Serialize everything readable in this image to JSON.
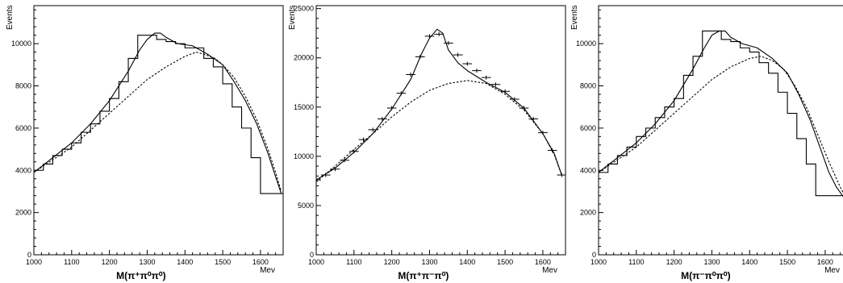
{
  "chart_data": [
    {
      "type": "histogram",
      "xlabel": "M(π⁺π⁰π⁰)",
      "xunit": "Mev",
      "ylabel": "Events",
      "xlim": [
        1000,
        1660
      ],
      "ylim": [
        0,
        11800
      ],
      "xticks": [
        "1000",
        "1100",
        "1200",
        "1300",
        "1400",
        "1500",
        "1600"
      ],
      "yticks": [
        "0",
        "2000",
        "4000",
        "6000",
        "8000",
        "10000"
      ],
      "histogram": {
        "edges": [
          1000,
          1025,
          1050,
          1075,
          1100,
          1125,
          1150,
          1175,
          1200,
          1225,
          1250,
          1275,
          1300,
          1325,
          1350,
          1375,
          1400,
          1425,
          1450,
          1475,
          1500,
          1525,
          1550,
          1575,
          1600,
          1625,
          1650,
          1660
        ],
        "values": [
          4000,
          4300,
          4700,
          5000,
          5300,
          5800,
          6200,
          6800,
          7400,
          8200,
          9300,
          10400,
          10400,
          10200,
          10100,
          10000,
          9800,
          9800,
          9300,
          8900,
          8100,
          7000,
          6000,
          4600,
          2900,
          2900,
          2900
        ]
      },
      "fit": {
        "x": [
          1000,
          1050,
          1100,
          1150,
          1200,
          1250,
          1280,
          1300,
          1320,
          1335,
          1350,
          1380,
          1420,
          1460,
          1500,
          1530,
          1560,
          1590,
          1620,
          1640,
          1655
        ],
        "y": [
          3900,
          4600,
          5300,
          6200,
          7300,
          8700,
          9700,
          10200,
          10500,
          10500,
          10300,
          10000,
          9900,
          9500,
          9000,
          8200,
          7300,
          6200,
          4800,
          3700,
          2900
        ]
      },
      "background": {
        "x": [
          1000,
          1050,
          1100,
          1150,
          1200,
          1250,
          1300,
          1350,
          1400,
          1430,
          1450,
          1480,
          1500,
          1530,
          1560,
          1590,
          1620,
          1640,
          1655
        ],
        "y": [
          3900,
          4500,
          5100,
          5900,
          6700,
          7500,
          8300,
          8900,
          9400,
          9600,
          9500,
          9300,
          9000,
          8400,
          7500,
          6400,
          5000,
          3900,
          3000
        ]
      }
    },
    {
      "type": "error_points",
      "xlabel": "M(π⁺π⁻π⁰)",
      "xunit": "Mev",
      "ylabel": "Events",
      "xlim": [
        1000,
        1660
      ],
      "ylim": [
        0,
        25300
      ],
      "xticks": [
        "1000",
        "1100",
        "1200",
        "1300",
        "1400",
        "1500",
        "1600"
      ],
      "yticks": [
        "0",
        "5000",
        "10000",
        "15000",
        "20000",
        "25000"
      ],
      "points": {
        "x": [
          1000,
          1025,
          1050,
          1075,
          1100,
          1125,
          1150,
          1175,
          1200,
          1225,
          1250,
          1275,
          1300,
          1325,
          1350,
          1375,
          1400,
          1425,
          1450,
          1475,
          1500,
          1525,
          1550,
          1575,
          1600,
          1625,
          1650
        ],
        "y": [
          7600,
          8100,
          8700,
          9600,
          10500,
          11700,
          12700,
          13800,
          14900,
          16400,
          18300,
          20100,
          22200,
          22400,
          21500,
          20300,
          19400,
          18700,
          18000,
          17300,
          16600,
          15800,
          14900,
          13800,
          12400,
          10600,
          8100
        ]
      },
      "fit": {
        "x": [
          1000,
          1050,
          1100,
          1150,
          1200,
          1250,
          1280,
          1300,
          1320,
          1335,
          1350,
          1375,
          1400,
          1450,
          1500,
          1550,
          1600,
          1630,
          1650
        ],
        "y": [
          7600,
          8800,
          10400,
          12300,
          14800,
          17800,
          20500,
          22000,
          22900,
          22500,
          20800,
          19500,
          18700,
          17500,
          16500,
          14900,
          12300,
          10300,
          8100
        ]
      },
      "background": {
        "x": [
          1000,
          1050,
          1100,
          1150,
          1200,
          1250,
          1300,
          1350,
          1400,
          1450,
          1500,
          1550,
          1600,
          1630,
          1650
        ],
        "y": [
          7400,
          9000,
          10700,
          12300,
          14000,
          15500,
          16700,
          17400,
          17700,
          17400,
          16300,
          14700,
          12300,
          10200,
          8100
        ]
      }
    },
    {
      "type": "histogram",
      "xlabel": "M(π⁻π⁰π⁰)",
      "xunit": "Mev",
      "ylabel": "Events",
      "xlim": [
        1000,
        1660
      ],
      "ylim": [
        0,
        11800
      ],
      "xticks": [
        "1000",
        "1100",
        "1200",
        "1300",
        "1400",
        "1500",
        "1600"
      ],
      "yticks": [
        "0",
        "2000",
        "4000",
        "6000",
        "8000",
        "10000"
      ],
      "histogram": {
        "edges": [
          1000,
          1025,
          1050,
          1075,
          1100,
          1125,
          1150,
          1175,
          1200,
          1225,
          1250,
          1275,
          1300,
          1325,
          1350,
          1375,
          1400,
          1425,
          1450,
          1475,
          1500,
          1525,
          1550,
          1575,
          1600,
          1625,
          1650,
          1660
        ],
        "values": [
          3900,
          4300,
          4700,
          5100,
          5600,
          6000,
          6500,
          7000,
          7400,
          8500,
          9400,
          10600,
          10600,
          10200,
          10100,
          9800,
          9600,
          9100,
          8600,
          7700,
          6700,
          5500,
          4300,
          2800,
          2800,
          2800,
          2800
        ]
      },
      "fit": {
        "x": [
          1000,
          1050,
          1100,
          1150,
          1200,
          1250,
          1280,
          1300,
          1320,
          1335,
          1350,
          1380,
          1420,
          1460,
          1500,
          1530,
          1560,
          1590,
          1610,
          1630,
          1650
        ],
        "y": [
          3900,
          4600,
          5300,
          6200,
          7300,
          8800,
          9800,
          10400,
          10600,
          10600,
          10300,
          10000,
          9800,
          9300,
          8600,
          7600,
          6400,
          4900,
          3900,
          3200,
          2700
        ]
      },
      "background": {
        "x": [
          1000,
          1050,
          1100,
          1150,
          1200,
          1250,
          1300,
          1350,
          1400,
          1430,
          1460,
          1490,
          1520,
          1550,
          1580,
          1610,
          1640,
          1655
        ],
        "y": [
          3900,
          4500,
          5100,
          5900,
          6700,
          7500,
          8300,
          8900,
          9300,
          9400,
          9200,
          8800,
          8000,
          7000,
          5700,
          4400,
          3200,
          2700
        ]
      }
    }
  ]
}
